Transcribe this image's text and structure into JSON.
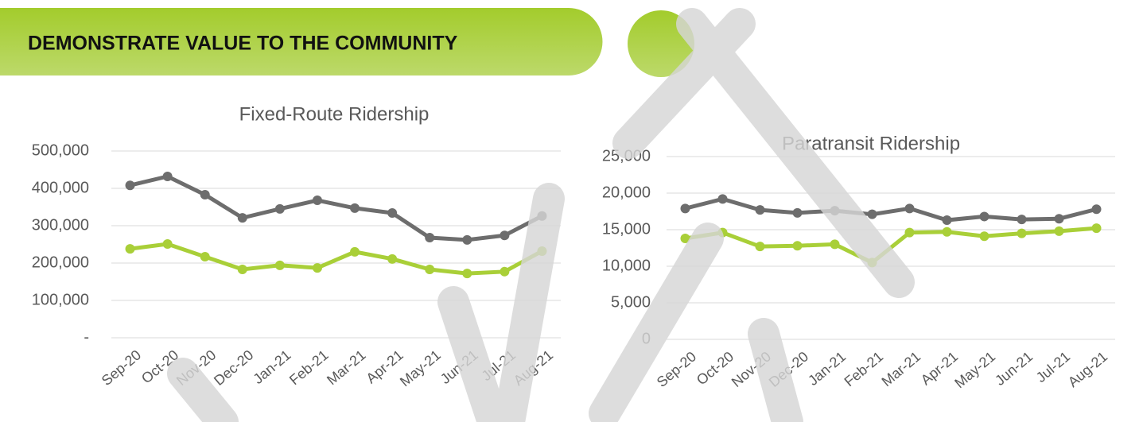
{
  "header": {
    "title": "DEMONSTRATE VALUE TO THE COMMUNITY"
  },
  "chart_data": [
    {
      "type": "line",
      "title": "Fixed-Route Ridership",
      "categories": [
        "Sep-20",
        "Oct-20",
        "Nov-20",
        "Dec-20",
        "Jan-21",
        "Feb-21",
        "Mar-21",
        "Apr-21",
        "May-21",
        "Jun-21",
        "Jul-21",
        "Aug-21"
      ],
      "series": [
        {
          "color": "#6d6d6d",
          "values": [
            408000,
            432000,
            383000,
            321000,
            345000,
            368000,
            347000,
            334000,
            268000,
            262000,
            274000,
            326000
          ]
        },
        {
          "color": "#a9cf38",
          "values": [
            238000,
            251000,
            217000,
            183000,
            194000,
            187000,
            230000,
            211000,
            183000,
            172000,
            177000,
            232000
          ]
        }
      ],
      "ylim": [
        0,
        500000
      ],
      "yticks": [
        {
          "value": 0,
          "label": "-"
        },
        {
          "value": 100000,
          "label": "100,000"
        },
        {
          "value": 200000,
          "label": "200,000"
        },
        {
          "value": 300000,
          "label": "300,000"
        },
        {
          "value": 400000,
          "label": "400,000"
        },
        {
          "value": 500000,
          "label": "500,000"
        }
      ],
      "grid": true
    },
    {
      "type": "line",
      "title": "Paratransit Ridership",
      "categories": [
        "Sep-20",
        "Oct-20",
        "Nov-20",
        "Dec-20",
        "Jan-21",
        "Feb-21",
        "Mar-21",
        "Apr-21",
        "May-21",
        "Jun-21",
        "Jul-21",
        "Aug-21"
      ],
      "series": [
        {
          "color": "#6d6d6d",
          "values": [
            17900,
            19200,
            17700,
            17300,
            17600,
            17100,
            17900,
            16300,
            16800,
            16400,
            16500,
            17800
          ]
        },
        {
          "color": "#a9cf38",
          "values": [
            13800,
            14600,
            12700,
            12800,
            13000,
            10500,
            14600,
            14700,
            14100,
            14500,
            14800,
            15200
          ]
        }
      ],
      "ylim": [
        0,
        25000
      ],
      "yticks": [
        0,
        {
          "value": 5000,
          "label": "5,000"
        },
        {
          "value": 10000,
          "label": "10,000"
        },
        {
          "value": 15000,
          "label": "15,000"
        },
        {
          "value": 20000,
          "label": "20,000"
        },
        {
          "value": 25000,
          "label": "25,000"
        }
      ],
      "grid": true
    }
  ]
}
